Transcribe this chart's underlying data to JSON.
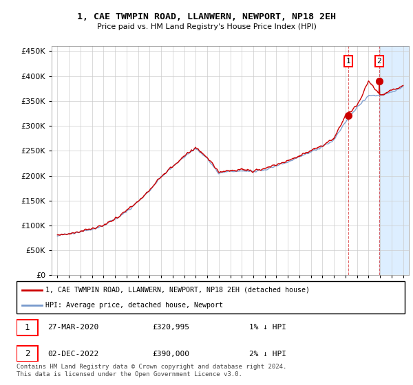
{
  "title": "1, CAE TWMPIN ROAD, LLANWERN, NEWPORT, NP18 2EH",
  "subtitle": "Price paid vs. HM Land Registry's House Price Index (HPI)",
  "ylim": [
    0,
    460000
  ],
  "yticks": [
    0,
    50000,
    100000,
    150000,
    200000,
    250000,
    300000,
    350000,
    400000,
    450000
  ],
  "xlim_start": 1994.5,
  "xlim_end": 2025.5,
  "background_chart": "#ffffff",
  "grid_color": "#cccccc",
  "hpi_color": "#7799cc",
  "price_color": "#cc0000",
  "shade_color": "#ddeeff",
  "transaction1_date": 2020.23,
  "transaction1_price": 320995,
  "transaction1_label": "27-MAR-2020",
  "transaction1_value": "£320,995",
  "transaction1_hpi": "1% ↓ HPI",
  "transaction2_date": 2022.92,
  "transaction2_price": 390000,
  "transaction2_label": "02-DEC-2022",
  "transaction2_value": "£390,000",
  "transaction2_hpi": "2% ↓ HPI",
  "legend_line1": "1, CAE TWMPIN ROAD, LLANWERN, NEWPORT, NP18 2EH (detached house)",
  "legend_line2": "HPI: Average price, detached house, Newport",
  "footer": "Contains HM Land Registry data © Crown copyright and database right 2024.\nThis data is licensed under the Open Government Licence v3.0.",
  "hpi_anchor_years": [
    1995,
    1996,
    1997,
    1998,
    1999,
    2000,
    2001,
    2002,
    2003,
    2004,
    2005,
    2006,
    2007,
    2008,
    2009,
    2010,
    2011,
    2012,
    2013,
    2014,
    2015,
    2016,
    2017,
    2018,
    2019,
    2020,
    2021,
    2022,
    2023,
    2024,
    2025
  ],
  "hpi_anchor_values": [
    80000,
    83000,
    87000,
    92000,
    100000,
    112000,
    128000,
    148000,
    170000,
    198000,
    218000,
    238000,
    255000,
    235000,
    205000,
    208000,
    210000,
    208000,
    212000,
    220000,
    228000,
    238000,
    248000,
    258000,
    272000,
    308000,
    338000,
    360000,
    360000,
    368000,
    378000
  ],
  "price_anchor_years": [
    1995,
    1996,
    1997,
    1998,
    1999,
    2000,
    2001,
    2002,
    2003,
    2004,
    2005,
    2006,
    2007,
    2008,
    2009,
    2010,
    2011,
    2012,
    2013,
    2014,
    2015,
    2016,
    2017,
    2018,
    2019,
    2020,
    2021,
    2022,
    2023,
    2024,
    2025
  ],
  "price_anchor_values": [
    81000,
    84000,
    88000,
    93000,
    101000,
    113000,
    129000,
    149000,
    171000,
    199000,
    219000,
    239000,
    257000,
    237000,
    207000,
    210000,
    212000,
    210000,
    214000,
    222000,
    230000,
    240000,
    250000,
    260000,
    275000,
    320995,
    340000,
    390000,
    362000,
    370000,
    380000
  ]
}
